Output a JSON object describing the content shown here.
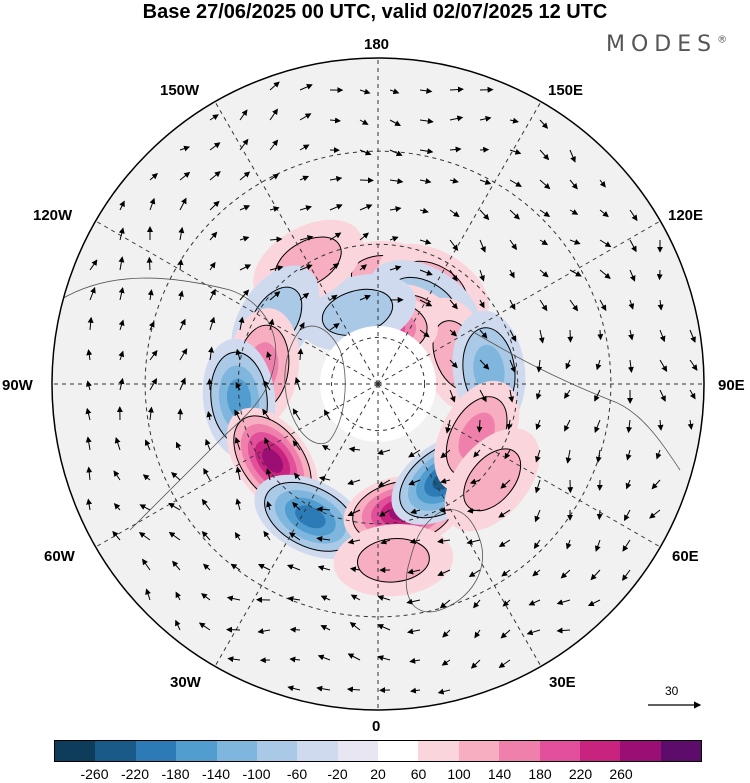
{
  "title": "Base 27/06/2025 00 UTC, valid 02/07/2025 12 UTC",
  "brand": "MODES",
  "brand_mark": "®",
  "longitude_labels": {
    "lon_180": "180",
    "lon_150e": "150E",
    "lon_120e": "120E",
    "lon_90e": "90E",
    "lon_60e": "60E",
    "lon_30e": "30E",
    "lon_0": "0",
    "lon_30w": "30W",
    "lon_60w": "60W",
    "lon_90w": "90W",
    "lon_120w": "120W",
    "lon_150w": "150W"
  },
  "reference_vector": "30",
  "colorbar": {
    "colors": [
      "#0e3d5c",
      "#1a5a88",
      "#2d7bb6",
      "#519dd0",
      "#7fb6de",
      "#aac9e6",
      "#cfdaee",
      "#e7e6f2",
      "#ffffff",
      "#fad6dc",
      "#f6aec0",
      "#ef80ac",
      "#e2509b",
      "#c8247f",
      "#9b0f74",
      "#5e0c6c"
    ],
    "ticks": [
      "-260",
      "-220",
      "-180",
      "-140",
      "-100",
      "-60",
      "-20",
      "20",
      "60",
      "100",
      "140",
      "180",
      "220",
      "260"
    ]
  },
  "anomalies": [
    {
      "lat": 67,
      "lon": 175,
      "sign": 1,
      "level": 2
    },
    {
      "lat": 66,
      "lon": 150,
      "sign": 1,
      "level": 2
    },
    {
      "lat": 70,
      "lon": 150,
      "sign": -1,
      "level": 2
    },
    {
      "lat": 76,
      "lon": 153,
      "sign": -1,
      "level": 4
    },
    {
      "lat": 75,
      "lon": 138,
      "sign": 1,
      "level": 4
    },
    {
      "lat": 72,
      "lon": 110,
      "sign": 1,
      "level": 2
    },
    {
      "lat": 66,
      "lon": 97,
      "sign": -1,
      "level": 3
    },
    {
      "lat": 78,
      "lon": 180,
      "sign": 1,
      "level": 5
    },
    {
      "lat": 74,
      "lon": -164,
      "sign": -1,
      "level": 2
    },
    {
      "lat": 60,
      "lon": -150,
      "sign": 1,
      "level": 2
    },
    {
      "lat": 64,
      "lon": -122,
      "sign": -1,
      "level": 2
    },
    {
      "lat": 65,
      "lon": -98,
      "sign": 1,
      "level": 3
    },
    {
      "lat": 60,
      "lon": -84,
      "sign": -1,
      "level": 4
    },
    {
      "lat": 62,
      "lon": -54,
      "sign": 1,
      "level": 6
    },
    {
      "lat": 58,
      "lon": -27,
      "sign": -1,
      "level": 5
    },
    {
      "lat": 62,
      "lon": 11,
      "sign": 1,
      "level": 6
    },
    {
      "lat": 65,
      "lon": 35,
      "sign": -1,
      "level": 6
    },
    {
      "lat": 66,
      "lon": 62,
      "sign": 1,
      "level": 3
    },
    {
      "lat": 58,
      "lon": 50,
      "sign": 1,
      "level": 2
    },
    {
      "lat": 52,
      "lon": 5,
      "sign": 1,
      "level": 2
    }
  ]
}
